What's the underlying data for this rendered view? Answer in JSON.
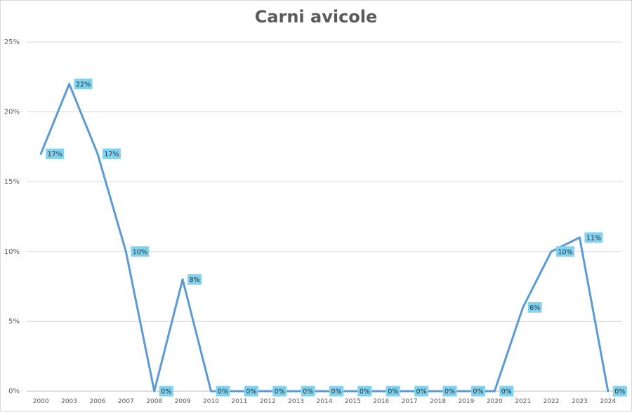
{
  "chart_data": {
    "type": "line",
    "title": "Carni avicole",
    "xlabel": "",
    "ylabel": "",
    "categories": [
      "2000",
      "2003",
      "2006",
      "2007",
      "2008",
      "2009",
      "2010",
      "2011",
      "2012",
      "2013",
      "2014",
      "2015",
      "2016",
      "2017",
      "2018",
      "2019",
      "2020",
      "2021",
      "2022",
      "2023",
      "2024"
    ],
    "series": [
      {
        "values": [
          17,
          22,
          17,
          10,
          0,
          8,
          0,
          0,
          0,
          0,
          0,
          0,
          0,
          0,
          0,
          0,
          0,
          6,
          10,
          11,
          0
        ],
        "data_labels": [
          "17%",
          "22%",
          "17%",
          "10%",
          "0%",
          "8%",
          "0%",
          "0%",
          "0%",
          "0%",
          "0%",
          "0%",
          "0%",
          "0%",
          "0%",
          "0%",
          "0%",
          "6%",
          "10%",
          "11%",
          "0%"
        ]
      }
    ],
    "ylim": [
      0,
      25
    ],
    "yticks": [
      0,
      5,
      10,
      15,
      20,
      25
    ],
    "ytick_labels": [
      "0%",
      "5%",
      "10%",
      "15%",
      "20%",
      "25%"
    ],
    "grid": true,
    "colors": {
      "line": "#5b9bd5",
      "label_bg": "#7fd3f0",
      "grid": "#d9d9d9",
      "text": "#595959"
    }
  }
}
